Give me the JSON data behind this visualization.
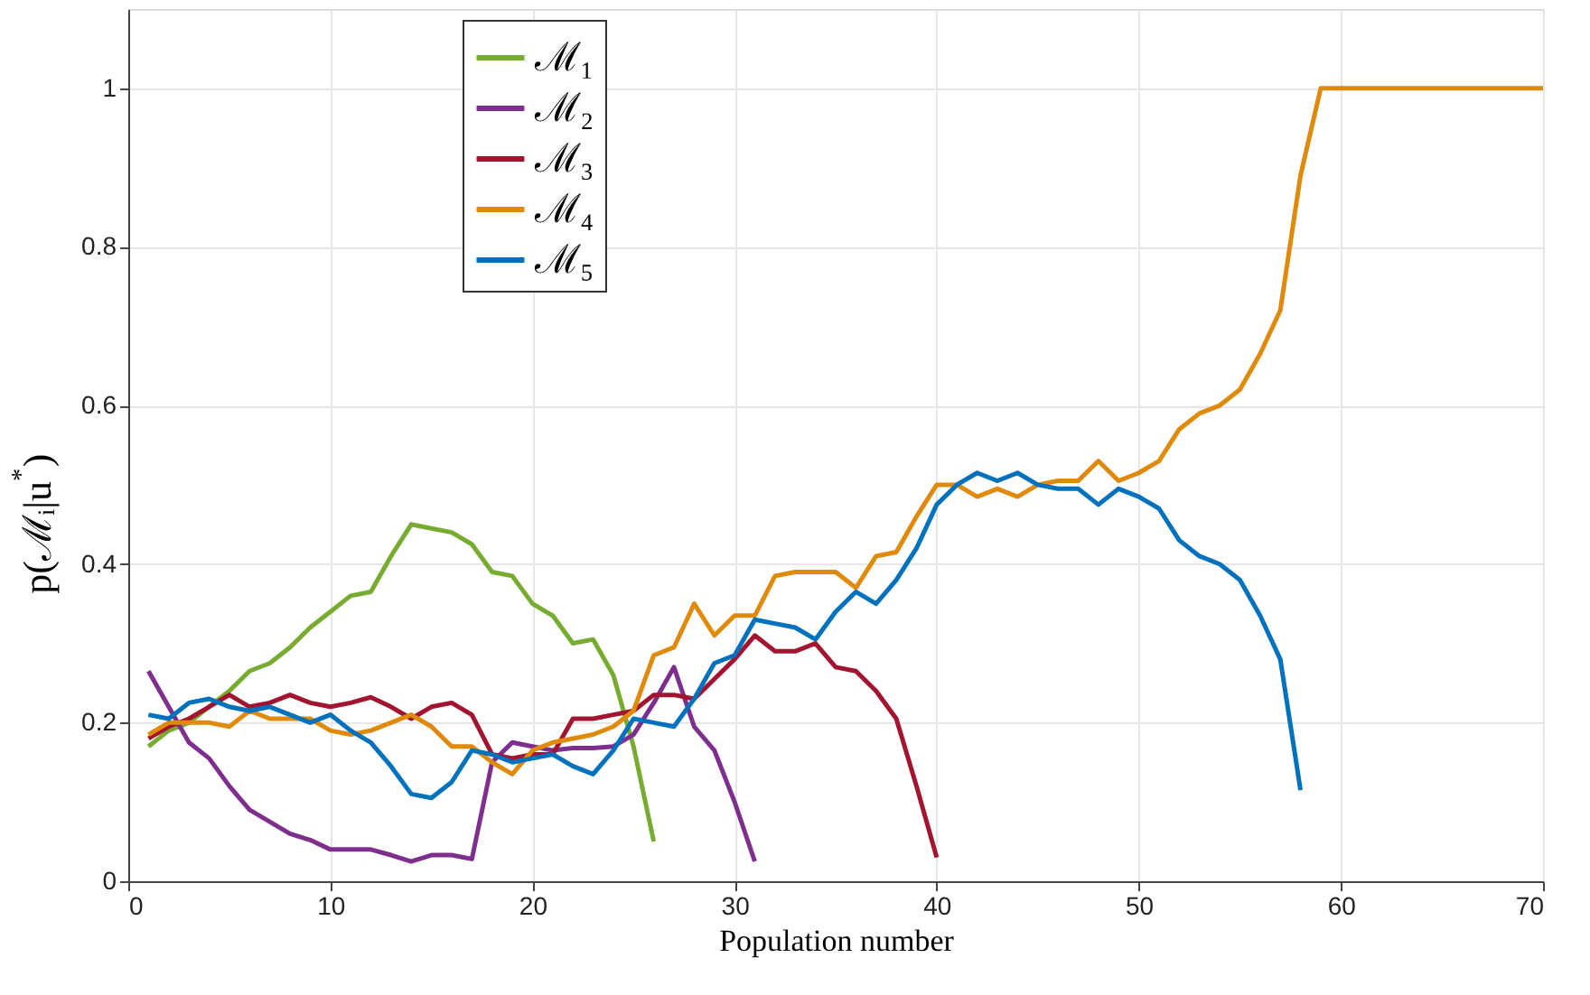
{
  "chart_data": {
    "type": "line",
    "xlabel": "Population number",
    "ylabel": "p(ℳᵢ|u$^{*}$)",
    "xlim": [
      0,
      70
    ],
    "xticks": [
      0,
      10,
      20,
      30,
      40,
      50,
      60,
      70
    ],
    "ylim": [
      0,
      1.1
    ],
    "yticks": [
      {
        "value": 0,
        "label": "0"
      },
      0.2,
      0.4,
      0.6,
      0.8,
      {
        "value": 1,
        "label": "1"
      }
    ],
    "grid": true,
    "legend": "top left",
    "line_style": "solid",
    "marker": "none",
    "series": [
      {
        "name": "ℳ₁",
        "color": "#77ac30",
        "x": [
          1,
          2,
          3,
          4,
          5,
          6,
          7,
          8,
          9,
          10,
          11,
          12,
          13,
          14,
          15,
          16,
          17,
          18,
          19,
          20,
          21,
          22,
          23,
          24,
          25,
          26
        ],
        "values": [
          0.17,
          0.19,
          0.2,
          0.22,
          0.24,
          0.265,
          0.275,
          0.295,
          0.32,
          0.34,
          0.36,
          0.365,
          0.41,
          0.45,
          0.445,
          0.44,
          0.425,
          0.39,
          0.385,
          0.35,
          0.335,
          0.3,
          0.305,
          0.26,
          0.17,
          0.05
        ]
      },
      {
        "name": "ℳ₂",
        "color": "#7e2f8e",
        "x": [
          1,
          2,
          3,
          4,
          5,
          6,
          7,
          8,
          9,
          10,
          11,
          12,
          13,
          14,
          15,
          16,
          17,
          18,
          19,
          20,
          21,
          22,
          23,
          24,
          25,
          26,
          27,
          28,
          29,
          30,
          31
        ],
        "values": [
          0.265,
          0.22,
          0.175,
          0.155,
          0.12,
          0.09,
          0.075,
          0.06,
          0.052,
          0.04,
          0.04,
          0.04,
          0.033,
          0.025,
          0.033,
          0.033,
          0.028,
          0.15,
          0.175,
          0.17,
          0.165,
          0.168,
          0.168,
          0.17,
          0.185,
          0.225,
          0.27,
          0.195,
          0.165,
          0.1,
          0.025
        ]
      },
      {
        "name": "ℳ₃",
        "color": "#a2142f",
        "x": [
          1,
          2,
          3,
          4,
          5,
          6,
          7,
          8,
          9,
          10,
          11,
          12,
          13,
          14,
          15,
          16,
          17,
          18,
          19,
          20,
          21,
          22,
          23,
          24,
          25,
          26,
          27,
          28,
          29,
          30,
          31,
          32,
          33,
          34,
          35,
          36,
          37,
          38,
          39,
          40
        ],
        "values": [
          0.18,
          0.195,
          0.205,
          0.22,
          0.235,
          0.22,
          0.225,
          0.235,
          0.225,
          0.22,
          0.225,
          0.232,
          0.22,
          0.205,
          0.22,
          0.225,
          0.21,
          0.16,
          0.155,
          0.16,
          0.16,
          0.205,
          0.205,
          0.21,
          0.215,
          0.235,
          0.235,
          0.23,
          0.255,
          0.28,
          0.31,
          0.29,
          0.29,
          0.3,
          0.27,
          0.265,
          0.24,
          0.205,
          0.12,
          0.03
        ]
      },
      {
        "name": "ℳ₄",
        "color": "#e08a0c",
        "x": [
          1,
          2,
          3,
          4,
          5,
          6,
          7,
          8,
          9,
          10,
          11,
          12,
          13,
          14,
          15,
          16,
          17,
          18,
          19,
          20,
          21,
          22,
          23,
          24,
          25,
          26,
          27,
          28,
          29,
          30,
          31,
          32,
          33,
          34,
          35,
          36,
          37,
          38,
          39,
          40,
          41,
          42,
          43,
          44,
          45,
          46,
          47,
          48,
          49,
          50,
          51,
          52,
          53,
          54,
          55,
          56,
          57,
          58,
          59,
          60,
          61,
          62,
          63,
          64,
          65,
          66,
          67,
          68,
          69,
          70
        ],
        "values": [
          0.185,
          0.2,
          0.2,
          0.2,
          0.195,
          0.215,
          0.205,
          0.205,
          0.205,
          0.19,
          0.185,
          0.19,
          0.2,
          0.21,
          0.195,
          0.17,
          0.17,
          0.15,
          0.135,
          0.165,
          0.175,
          0.18,
          0.185,
          0.195,
          0.215,
          0.285,
          0.295,
          0.35,
          0.31,
          0.335,
          0.335,
          0.385,
          0.39,
          0.39,
          0.39,
          0.37,
          0.41,
          0.415,
          0.46,
          0.5,
          0.5,
          0.485,
          0.495,
          0.485,
          0.5,
          0.505,
          0.505,
          0.53,
          0.505,
          0.515,
          0.53,
          0.57,
          0.59,
          0.6,
          0.62,
          0.665,
          0.72,
          0.89,
          1,
          1,
          1,
          1,
          1,
          1,
          1,
          1,
          1,
          1,
          1,
          1
        ]
      },
      {
        "name": "ℳ₅",
        "color": "#0072bd",
        "x": [
          1,
          2,
          3,
          4,
          5,
          6,
          7,
          8,
          9,
          10,
          11,
          12,
          13,
          14,
          15,
          16,
          17,
          18,
          19,
          20,
          21,
          22,
          23,
          24,
          25,
          26,
          27,
          28,
          29,
          30,
          31,
          32,
          33,
          34,
          35,
          36,
          37,
          38,
          39,
          40,
          41,
          42,
          43,
          44,
          45,
          46,
          47,
          48,
          49,
          50,
          51,
          52,
          53,
          54,
          55,
          56,
          57,
          58
        ],
        "values": [
          0.21,
          0.205,
          0.225,
          0.23,
          0.22,
          0.215,
          0.22,
          0.21,
          0.2,
          0.21,
          0.19,
          0.175,
          0.145,
          0.11,
          0.105,
          0.125,
          0.165,
          0.16,
          0.15,
          0.155,
          0.16,
          0.145,
          0.135,
          0.165,
          0.205,
          0.2,
          0.195,
          0.23,
          0.275,
          0.285,
          0.33,
          0.325,
          0.32,
          0.305,
          0.34,
          0.365,
          0.35,
          0.38,
          0.42,
          0.475,
          0.5,
          0.515,
          0.505,
          0.515,
          0.5,
          0.495,
          0.495,
          0.475,
          0.495,
          0.485,
          0.47,
          0.43,
          0.41,
          0.4,
          0.38,
          0.335,
          0.28,
          0.115
        ]
      }
    ]
  }
}
